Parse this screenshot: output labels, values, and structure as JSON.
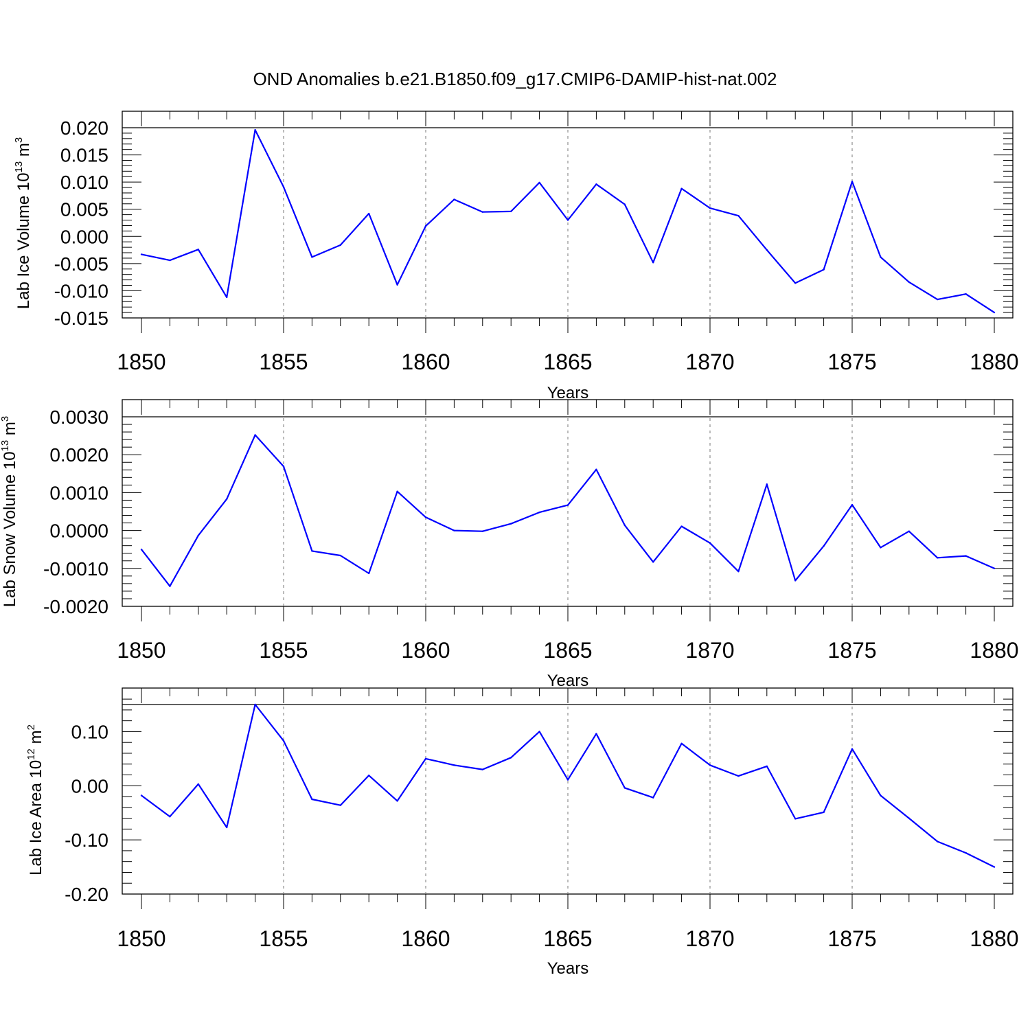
{
  "title": "OND Anomalies b.e21.B1850.f09_g17.CMIP6-DAMIP-hist-nat.002",
  "chart_data": [
    {
      "type": "line",
      "title": "",
      "xlabel": "Years",
      "ylabel": "Lab Ice Volume 10",
      "ylabel_exp": "13",
      "ylabel_unit": " m",
      "ylabel_unit_exp": "3",
      "x": [
        1850,
        1851,
        1852,
        1853,
        1854,
        1855,
        1856,
        1857,
        1858,
        1859,
        1860,
        1861,
        1862,
        1863,
        1864,
        1865,
        1866,
        1867,
        1868,
        1869,
        1870,
        1871,
        1872,
        1873,
        1874,
        1875,
        1876,
        1877,
        1878,
        1879,
        1880
      ],
      "values": [
        -0.0033,
        -0.0044,
        -0.0024,
        -0.0112,
        0.0196,
        0.0091,
        -0.0038,
        -0.0016,
        0.0042,
        -0.0089,
        0.0019,
        0.0068,
        0.0045,
        0.0046,
        0.0099,
        0.003,
        0.0096,
        0.0059,
        -0.0048,
        0.0088,
        0.0052,
        0.0038,
        -0.0025,
        -0.0086,
        -0.0061,
        0.0101,
        -0.0038,
        -0.0084,
        -0.0116,
        -0.0106,
        -0.014
      ],
      "xlim": [
        1850,
        1880
      ],
      "ylim": [
        -0.015,
        0.02
      ],
      "xticks": [
        "1850",
        "1855",
        "1860",
        "1865",
        "1870",
        "1875",
        "1880"
      ],
      "yticks": [
        "-0.015",
        "-0.010",
        "-0.005",
        "0.000",
        "0.005",
        "0.010",
        "0.015",
        "0.020"
      ],
      "ytick_values": [
        -0.015,
        -0.01,
        -0.005,
        0.0,
        0.005,
        0.01,
        0.015,
        0.02
      ],
      "zero_line": 0.02,
      "series_color": "#0000ff"
    },
    {
      "type": "line",
      "title": "",
      "xlabel": "Years",
      "ylabel": "Lab Snow Volume 10",
      "ylabel_exp": "13",
      "ylabel_unit": " m",
      "ylabel_unit_exp": "3",
      "x": [
        1850,
        1851,
        1852,
        1853,
        1854,
        1855,
        1856,
        1857,
        1858,
        1859,
        1860,
        1861,
        1862,
        1863,
        1864,
        1865,
        1866,
        1867,
        1868,
        1869,
        1870,
        1871,
        1872,
        1873,
        1874,
        1875,
        1876,
        1877,
        1878,
        1879,
        1880
      ],
      "values": [
        -0.0005,
        -0.00147,
        -0.00013,
        0.00083,
        0.00252,
        0.00169,
        -0.00054,
        -0.00066,
        -0.00113,
        0.00103,
        0.00035,
        0.0,
        -2e-05,
        0.00018,
        0.00048,
        0.00067,
        0.00161,
        0.00014,
        -0.00083,
        0.00011,
        -0.00033,
        -0.00108,
        0.00122,
        -0.00132,
        -0.00041,
        0.00068,
        -0.00045,
        -2e-05,
        -0.00072,
        -0.00067,
        -0.001
      ],
      "xlim": [
        1850,
        1880
      ],
      "ylim": [
        -0.002,
        0.003
      ],
      "xticks": [
        "1850",
        "1855",
        "1860",
        "1865",
        "1870",
        "1875",
        "1880"
      ],
      "yticks": [
        "-0.0020",
        "-0.0010",
        "0.0000",
        "0.0010",
        "0.0020",
        "0.0030"
      ],
      "ytick_values": [
        -0.002,
        -0.001,
        0.0,
        0.001,
        0.002,
        0.003
      ],
      "zero_line": 0.003,
      "series_color": "#0000ff"
    },
    {
      "type": "line",
      "title": "",
      "xlabel": "Years",
      "ylabel": "Lab Ice Area 10",
      "ylabel_exp": "12",
      "ylabel_unit": " m",
      "ylabel_unit_exp": "2",
      "x": [
        1850,
        1851,
        1852,
        1853,
        1854,
        1855,
        1856,
        1857,
        1858,
        1859,
        1860,
        1861,
        1862,
        1863,
        1864,
        1865,
        1866,
        1867,
        1868,
        1869,
        1870,
        1871,
        1872,
        1873,
        1874,
        1875,
        1876,
        1877,
        1878,
        1879,
        1880
      ],
      "values": [
        -0.018,
        -0.057,
        0.003,
        -0.077,
        0.15,
        0.083,
        -0.025,
        -0.036,
        0.019,
        -0.028,
        0.05,
        0.038,
        0.03,
        0.052,
        0.1,
        0.011,
        0.096,
        -0.004,
        -0.022,
        0.078,
        0.038,
        0.018,
        0.036,
        -0.061,
        -0.049,
        0.068,
        -0.018,
        -0.06,
        -0.103,
        -0.124,
        -0.15
      ],
      "xlim": [
        1850,
        1880
      ],
      "ylim": [
        -0.2,
        0.15
      ],
      "xticks": [
        "1850",
        "1855",
        "1860",
        "1865",
        "1870",
        "1875",
        "1880"
      ],
      "yticks": [
        "-0.20",
        "-0.10",
        "0.00",
        "0.10"
      ],
      "ytick_values": [
        -0.2,
        -0.1,
        0.0,
        0.1
      ],
      "zero_line": 0.15,
      "series_color": "#0000ff"
    }
  ]
}
